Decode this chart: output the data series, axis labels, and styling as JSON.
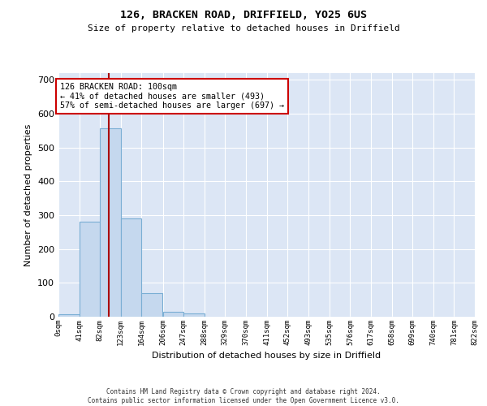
{
  "title": "126, BRACKEN ROAD, DRIFFIELD, YO25 6US",
  "subtitle": "Size of property relative to detached houses in Driffield",
  "xlabel": "Distribution of detached houses by size in Driffield",
  "ylabel": "Number of detached properties",
  "bar_color": "#c5d8ee",
  "bar_edgecolor": "#7aaed4",
  "bin_edges": [
    0,
    41,
    82,
    123,
    164,
    206,
    247,
    288,
    329,
    370,
    411,
    452,
    493,
    535,
    576,
    617,
    658,
    699,
    740,
    781,
    822
  ],
  "bar_heights": [
    8,
    280,
    557,
    291,
    70,
    14,
    9,
    0,
    0,
    0,
    0,
    0,
    0,
    0,
    0,
    0,
    0,
    0,
    0,
    0
  ],
  "property_size": 100,
  "red_line_color": "#aa0000",
  "annotation_text": "126 BRACKEN ROAD: 100sqm\n← 41% of detached houses are smaller (493)\n57% of semi-detached houses are larger (697) →",
  "annotation_box_color": "#ffffff",
  "annotation_box_edgecolor": "#cc0000",
  "ylim": [
    0,
    720
  ],
  "yticks": [
    0,
    100,
    200,
    300,
    400,
    500,
    600,
    700
  ],
  "background_color": "#dce6f5",
  "grid_color": "#ffffff",
  "footnote": "Contains HM Land Registry data © Crown copyright and database right 2024.\nContains public sector information licensed under the Open Government Licence v3.0.",
  "tick_labels": [
    "0sqm",
    "41sqm",
    "82sqm",
    "123sqm",
    "164sqm",
    "206sqm",
    "247sqm",
    "288sqm",
    "329sqm",
    "370sqm",
    "411sqm",
    "452sqm",
    "493sqm",
    "535sqm",
    "576sqm",
    "617sqm",
    "658sqm",
    "699sqm",
    "740sqm",
    "781sqm",
    "822sqm"
  ]
}
